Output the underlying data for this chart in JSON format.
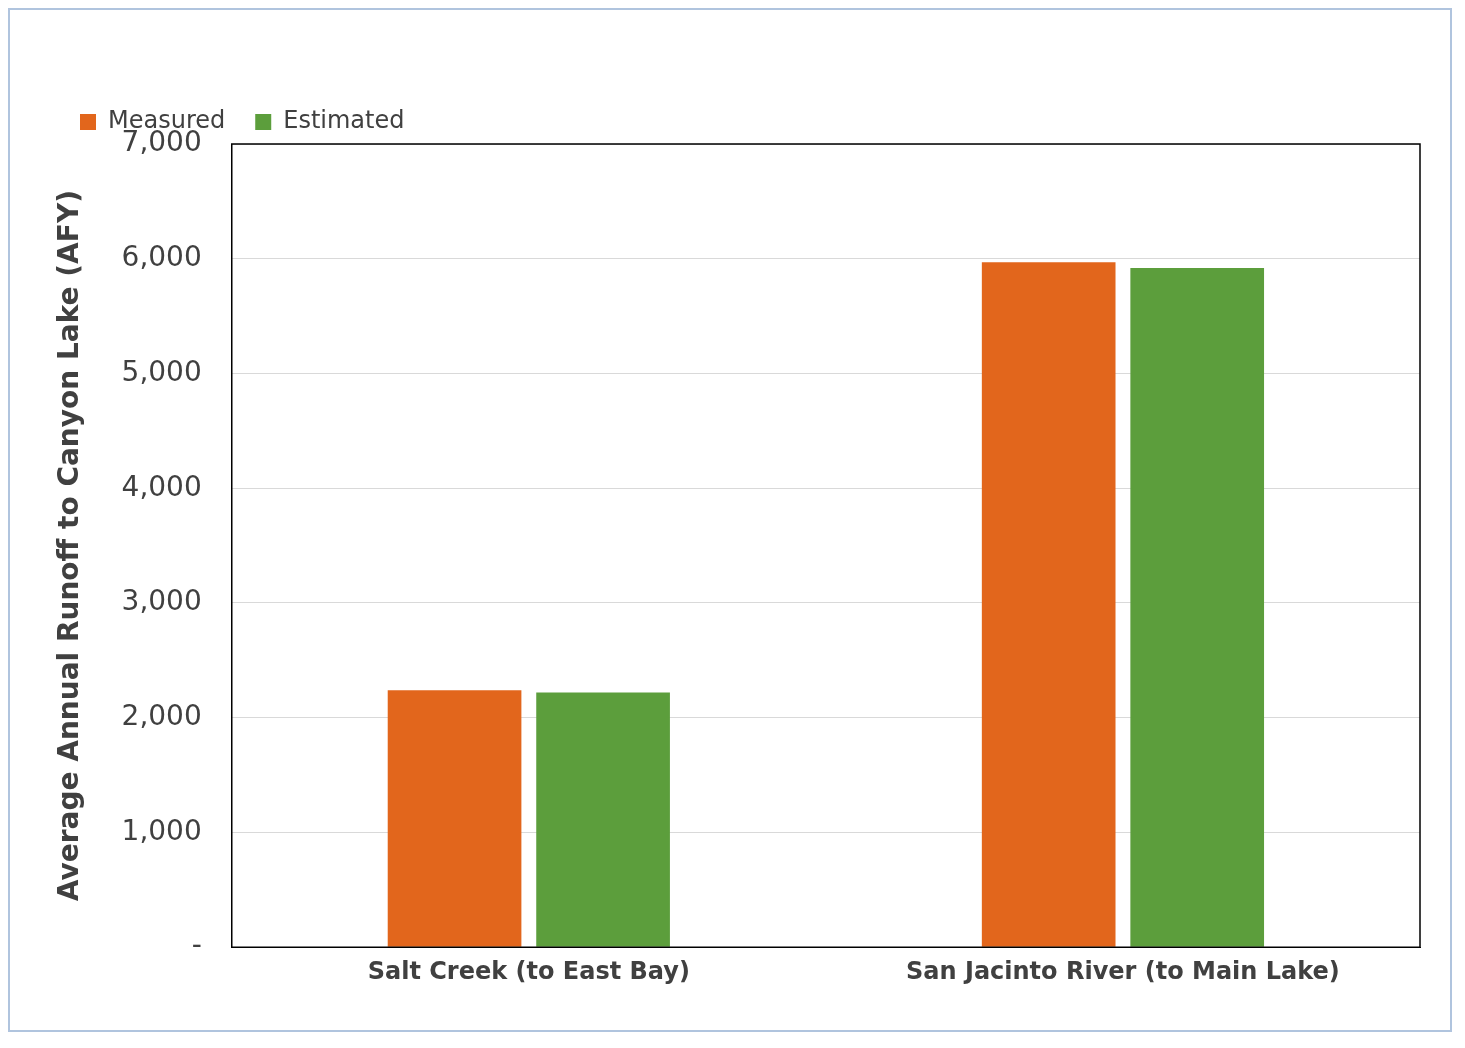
{
  "chart_data": {
    "type": "bar",
    "ylabel": "Average Annual Runoff to Canyon Lake (AFY)",
    "categories": [
      "Salt Creek (to East Bay)",
      "San Jacinto River (to Main Lake)"
    ],
    "series": [
      {
        "name": "Measured",
        "color": "#e2661c",
        "values": [
          2240,
          5970
        ]
      },
      {
        "name": "Estimated",
        "color": "#5c9e3c",
        "values": [
          2220,
          5920
        ]
      }
    ],
    "ylim": [
      0,
      7000
    ],
    "yticks": [
      {
        "value": 0,
        "label": "-"
      },
      {
        "value": 1000,
        "label": "1,000"
      },
      {
        "value": 2000,
        "label": "2,000"
      },
      {
        "value": 3000,
        "label": "3,000"
      },
      {
        "value": 4000,
        "label": "4,000"
      },
      {
        "value": 5000,
        "label": "5,000"
      },
      {
        "value": 6000,
        "label": "6,000"
      },
      {
        "value": 7000,
        "label": "7,000"
      }
    ],
    "grid": "y",
    "legend": "top left"
  }
}
